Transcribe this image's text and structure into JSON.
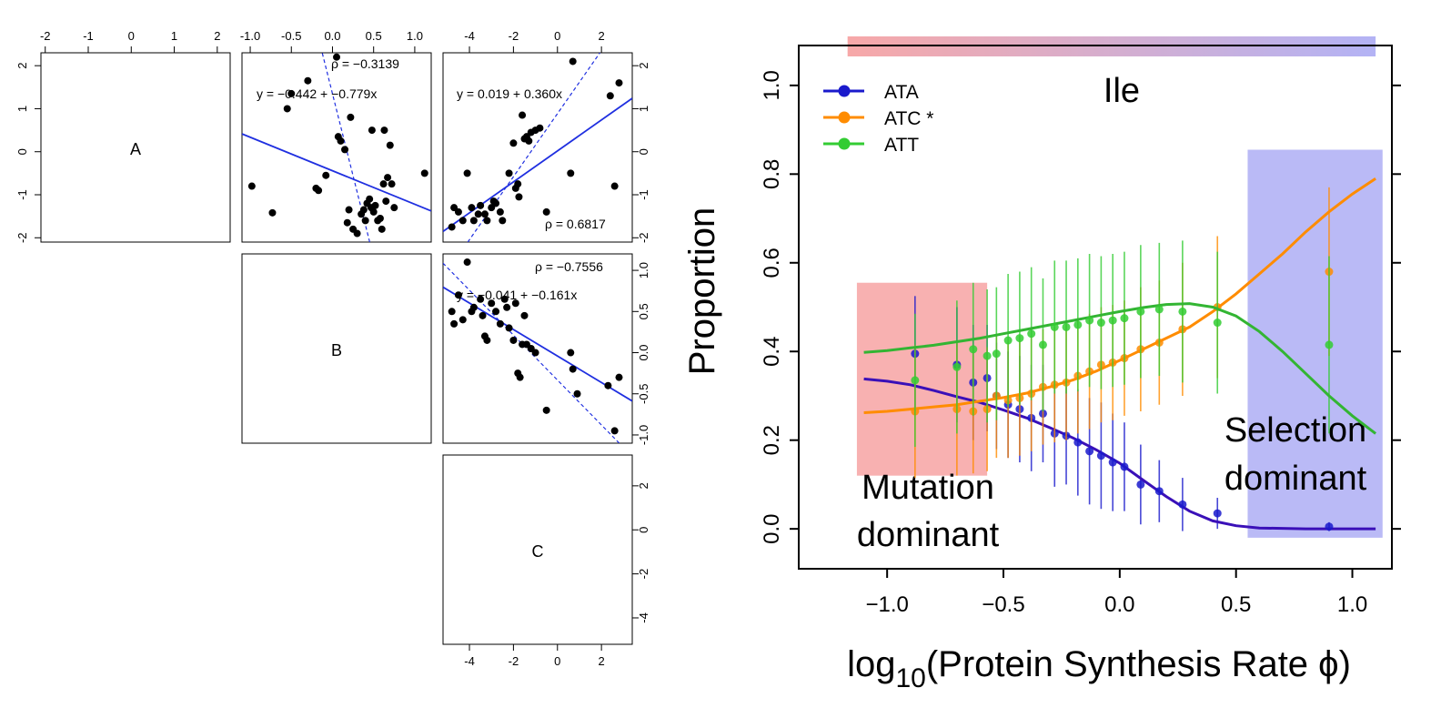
{
  "chart_data": [
    {
      "type": "scatter",
      "panel": "pairs",
      "labels": {
        "a": "A",
        "b": "B",
        "c": "C"
      },
      "top_ticks": {
        "a": [
          "-2",
          "-1",
          "0",
          "1",
          "2"
        ],
        "b": [
          "-1.0",
          "-0.5",
          "0.0",
          "0.5",
          "1.0"
        ],
        "c": [
          "-4",
          "-2",
          "0",
          "2"
        ]
      },
      "bottom_ticks": {
        "c": [
          "-4",
          "-2",
          "0",
          "2"
        ]
      },
      "left_ticks": {
        "a": [
          "-2",
          "-1",
          "0",
          "1",
          "2"
        ]
      },
      "right_ticks": {
        "a": [
          "-2",
          "-1",
          "0",
          "1",
          "2"
        ],
        "b": [
          "-1.0",
          "-0.5",
          "0.0",
          "0.5",
          "1.0"
        ],
        "c": [
          "-4",
          "-2",
          "0",
          "2"
        ]
      },
      "ranges": {
        "a": [
          -2.1,
          2.3
        ],
        "b": [
          -1.1,
          1.2
        ],
        "c": [
          -5.2,
          3.4
        ]
      },
      "ab": {
        "rho": "ρ = −0.3139",
        "eq": "y = −0.442 + −0.779x",
        "line": {
          "intercept": -0.442,
          "slope": -0.779
        },
        "points": [
          [
            -0.98,
            -0.8
          ],
          [
            -0.73,
            -1.42
          ],
          [
            -0.55,
            1.0
          ],
          [
            -0.5,
            1.35
          ],
          [
            -0.3,
            1.65
          ],
          [
            -0.2,
            -0.85
          ],
          [
            -0.17,
            -0.9
          ],
          [
            -0.08,
            -0.55
          ],
          [
            0.05,
            2.2
          ],
          [
            0.07,
            0.35
          ],
          [
            0.1,
            0.25
          ],
          [
            0.15,
            0.05
          ],
          [
            0.18,
            -1.65
          ],
          [
            0.2,
            -1.35
          ],
          [
            0.22,
            0.8
          ],
          [
            0.25,
            -1.8
          ],
          [
            0.3,
            -1.9
          ],
          [
            0.35,
            -1.45
          ],
          [
            0.38,
            -1.35
          ],
          [
            0.4,
            -1.6
          ],
          [
            0.42,
            -1.2
          ],
          [
            0.45,
            -1.1
          ],
          [
            0.47,
            -1.3
          ],
          [
            0.48,
            0.5
          ],
          [
            0.5,
            -1.4
          ],
          [
            0.52,
            -1.25
          ],
          [
            0.55,
            -1.6
          ],
          [
            0.58,
            -1.55
          ],
          [
            0.6,
            -1.8
          ],
          [
            0.62,
            -0.75
          ],
          [
            0.63,
            0.5
          ],
          [
            0.65,
            -1.15
          ],
          [
            0.67,
            -0.6
          ],
          [
            0.7,
            0.15
          ],
          [
            0.72,
            -0.75
          ],
          [
            0.75,
            -1.3
          ],
          [
            1.12,
            -0.5
          ]
        ]
      },
      "ac": {
        "rho": "ρ = 0.6817",
        "eq": "y = 0.019 + 0.360x",
        "line": {
          "intercept": 0.019,
          "slope": 0.36
        },
        "points": [
          [
            -4.8,
            -1.75
          ],
          [
            -4.7,
            -1.3
          ],
          [
            -4.5,
            -1.4
          ],
          [
            -4.3,
            -1.6
          ],
          [
            -4.1,
            -0.5
          ],
          [
            -3.9,
            -1.3
          ],
          [
            -3.8,
            -1.6
          ],
          [
            -3.6,
            -1.45
          ],
          [
            -3.5,
            -1.25
          ],
          [
            -3.3,
            -1.45
          ],
          [
            -3.2,
            -1.6
          ],
          [
            -3.0,
            -1.3
          ],
          [
            -2.9,
            -1.15
          ],
          [
            -2.8,
            -1.2
          ],
          [
            -2.6,
            -1.4
          ],
          [
            -2.5,
            -1.6
          ],
          [
            -2.2,
            -0.5
          ],
          [
            -2.0,
            0.2
          ],
          [
            -1.9,
            -0.85
          ],
          [
            -1.8,
            -0.75
          ],
          [
            -1.75,
            -1.05
          ],
          [
            -1.6,
            0.85
          ],
          [
            -1.5,
            0.3
          ],
          [
            -1.4,
            0.35
          ],
          [
            -1.3,
            0.25
          ],
          [
            -1.2,
            0.45
          ],
          [
            -1.0,
            0.5
          ],
          [
            -0.8,
            0.55
          ],
          [
            -0.5,
            -1.4
          ],
          [
            0.6,
            -0.5
          ],
          [
            0.7,
            2.1
          ],
          [
            2.4,
            1.3
          ],
          [
            2.6,
            -0.8
          ],
          [
            2.8,
            1.6
          ]
        ]
      },
      "bc": {
        "rho": "ρ = −0.7556",
        "eq": "y = −0.041 + −0.161x",
        "line": {
          "intercept": -0.041,
          "slope": -0.161
        },
        "points": [
          [
            -4.8,
            0.5
          ],
          [
            -4.7,
            0.35
          ],
          [
            -4.5,
            0.7
          ],
          [
            -4.3,
            0.4
          ],
          [
            -4.1,
            1.1
          ],
          [
            -3.9,
            0.5
          ],
          [
            -3.8,
            0.55
          ],
          [
            -3.5,
            0.65
          ],
          [
            -3.4,
            0.45
          ],
          [
            -3.3,
            0.2
          ],
          [
            -3.2,
            0.15
          ],
          [
            -3.0,
            0.6
          ],
          [
            -2.8,
            0.5
          ],
          [
            -2.6,
            0.35
          ],
          [
            -2.4,
            0.65
          ],
          [
            -2.3,
            0.55
          ],
          [
            -2.2,
            0.3
          ],
          [
            -2.0,
            0.15
          ],
          [
            -1.9,
            0.6
          ],
          [
            -1.8,
            -0.25
          ],
          [
            -1.7,
            -0.3
          ],
          [
            -1.6,
            0.1
          ],
          [
            -1.5,
            0.45
          ],
          [
            -1.4,
            0.1
          ],
          [
            -1.2,
            0.05
          ],
          [
            -1.0,
            0.0
          ],
          [
            -0.5,
            -0.7
          ],
          [
            0.6,
            0.0
          ],
          [
            0.7,
            -0.2
          ],
          [
            0.9,
            -0.5
          ],
          [
            2.3,
            -0.4
          ],
          [
            2.6,
            -0.95
          ],
          [
            2.8,
            -0.3
          ]
        ]
      }
    },
    {
      "type": "line",
      "title": "Ile",
      "xlabel_main": "log",
      "xlabel_sub": "10",
      "xlabel_rest": "(Protein Synthesis Rate ϕ)",
      "ylabel": "Proportion",
      "xlim": [
        -1.38,
        1.17
      ],
      "ylim": [
        -0.09,
        1.09
      ],
      "xticks": [
        -1.0,
        -0.5,
        0.0,
        0.5,
        1.0
      ],
      "xtick_labels": [
        "−1.0",
        "−0.5",
        "0.0",
        "0.5",
        "1.0"
      ],
      "yticks": [
        0.0,
        0.2,
        0.4,
        0.6,
        0.8,
        1.0
      ],
      "ytick_labels": [
        "0.0",
        "0.2",
        "0.4",
        "0.6",
        "0.8",
        "1.0"
      ],
      "legend_position": "top-left",
      "regions": [
        {
          "label_1": "Mutation",
          "label_2": "dominant",
          "x": [
            -1.13,
            -0.57
          ],
          "y": [
            0.12,
            0.555
          ],
          "color": "#f7a8a8"
        },
        {
          "label_1": "Selection",
          "label_2": "dominant",
          "x": [
            0.55,
            1.13
          ],
          "y": [
            -0.02,
            0.855
          ],
          "color": "#b3b3f5"
        }
      ],
      "gradient_bar": {
        "x": [
          -1.17,
          1.1
        ],
        "colors": [
          "#f7a8a8",
          "#b3b3f5"
        ]
      },
      "x": [
        -0.88,
        -0.7,
        -0.63,
        -0.57,
        -0.53,
        -0.48,
        -0.43,
        -0.38,
        -0.33,
        -0.28,
        -0.23,
        -0.18,
        -0.13,
        -0.08,
        -0.03,
        0.02,
        0.09,
        0.17,
        0.27,
        0.42,
        0.9
      ],
      "series": [
        {
          "name": "ATA",
          "color": "#1a1acc",
          "curve_color": "#3a10b8",
          "values": [
            0.395,
            0.37,
            0.33,
            0.34,
            0.3,
            0.28,
            0.27,
            0.25,
            0.26,
            0.215,
            0.21,
            0.195,
            0.175,
            0.165,
            0.15,
            0.14,
            0.1,
            0.085,
            0.055,
            0.035,
            0.005
          ],
          "err": [
            0.13,
            0.13,
            0.13,
            0.12,
            0.12,
            0.12,
            0.12,
            0.12,
            0.11,
            0.12,
            0.11,
            0.12,
            0.12,
            0.12,
            0.11,
            0.1,
            0.09,
            0.07,
            0.06,
            0.035,
            0.01
          ],
          "curve": [
            [
              -1.1,
              0.338
            ],
            [
              -1.0,
              0.333
            ],
            [
              -0.9,
              0.325
            ],
            [
              -0.8,
              0.312
            ],
            [
              -0.7,
              0.298
            ],
            [
              -0.6,
              0.285
            ],
            [
              -0.5,
              0.268
            ],
            [
              -0.4,
              0.25
            ],
            [
              -0.3,
              0.228
            ],
            [
              -0.2,
              0.205
            ],
            [
              -0.1,
              0.178
            ],
            [
              0.0,
              0.148
            ],
            [
              0.1,
              0.11
            ],
            [
              0.2,
              0.073
            ],
            [
              0.3,
              0.04
            ],
            [
              0.4,
              0.018
            ],
            [
              0.5,
              0.007
            ],
            [
              0.6,
              0.002
            ],
            [
              0.8,
              0.0
            ],
            [
              1.1,
              0.0
            ]
          ]
        },
        {
          "name": "ATC *",
          "color": "#ff8c00",
          "curve_color": "#ff8c00",
          "values": [
            0.265,
            0.27,
            0.265,
            0.27,
            0.3,
            0.29,
            0.295,
            0.305,
            0.32,
            0.325,
            0.33,
            0.345,
            0.355,
            0.37,
            0.375,
            0.385,
            0.405,
            0.42,
            0.45,
            0.5,
            0.58
          ],
          "err": [
            0.15,
            0.15,
            0.14,
            0.14,
            0.14,
            0.13,
            0.13,
            0.13,
            0.13,
            0.13,
            0.13,
            0.13,
            0.13,
            0.13,
            0.13,
            0.13,
            0.14,
            0.14,
            0.15,
            0.16,
            0.19
          ],
          "curve": [
            [
              -1.1,
              0.262
            ],
            [
              -1.0,
              0.265
            ],
            [
              -0.9,
              0.27
            ],
            [
              -0.8,
              0.275
            ],
            [
              -0.7,
              0.28
            ],
            [
              -0.6,
              0.288
            ],
            [
              -0.5,
              0.296
            ],
            [
              -0.4,
              0.306
            ],
            [
              -0.3,
              0.32
            ],
            [
              -0.2,
              0.336
            ],
            [
              -0.1,
              0.356
            ],
            [
              0.0,
              0.38
            ],
            [
              0.1,
              0.405
            ],
            [
              0.2,
              0.43
            ],
            [
              0.3,
              0.455
            ],
            [
              0.4,
              0.49
            ],
            [
              0.5,
              0.53
            ],
            [
              0.6,
              0.575
            ],
            [
              0.7,
              0.62
            ],
            [
              0.8,
              0.67
            ],
            [
              0.9,
              0.715
            ],
            [
              1.0,
              0.755
            ],
            [
              1.1,
              0.79
            ]
          ]
        },
        {
          "name": "ATT",
          "color": "#33cc33",
          "curve_color": "#33b533",
          "values": [
            0.335,
            0.365,
            0.405,
            0.39,
            0.395,
            0.425,
            0.43,
            0.44,
            0.415,
            0.455,
            0.455,
            0.46,
            0.47,
            0.465,
            0.47,
            0.475,
            0.49,
            0.495,
            0.49,
            0.465,
            0.415
          ],
          "err": [
            0.15,
            0.15,
            0.15,
            0.15,
            0.15,
            0.15,
            0.15,
            0.15,
            0.15,
            0.15,
            0.15,
            0.15,
            0.15,
            0.15,
            0.15,
            0.15,
            0.15,
            0.15,
            0.16,
            0.16,
            0.2
          ],
          "curve": [
            [
              -1.1,
              0.398
            ],
            [
              -1.0,
              0.402
            ],
            [
              -0.9,
              0.408
            ],
            [
              -0.8,
              0.414
            ],
            [
              -0.7,
              0.422
            ],
            [
              -0.6,
              0.43
            ],
            [
              -0.5,
              0.44
            ],
            [
              -0.4,
              0.45
            ],
            [
              -0.3,
              0.46
            ],
            [
              -0.2,
              0.47
            ],
            [
              -0.1,
              0.48
            ],
            [
              0.0,
              0.49
            ],
            [
              0.1,
              0.499
            ],
            [
              0.2,
              0.506
            ],
            [
              0.3,
              0.508
            ],
            [
              0.4,
              0.5
            ],
            [
              0.5,
              0.48
            ],
            [
              0.6,
              0.445
            ],
            [
              0.7,
              0.4
            ],
            [
              0.8,
              0.35
            ],
            [
              0.9,
              0.3
            ],
            [
              1.0,
              0.255
            ],
            [
              1.1,
              0.215
            ]
          ]
        }
      ]
    }
  ]
}
